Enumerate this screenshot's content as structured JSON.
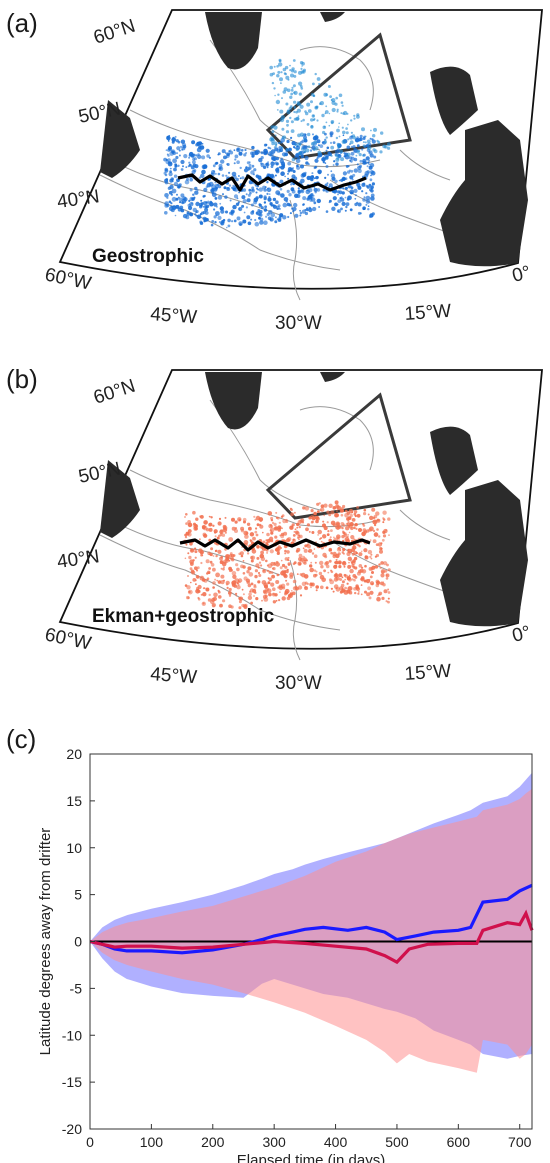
{
  "panels": {
    "a": {
      "label": "(a)",
      "flow_label": "Geostrophic",
      "particle_color": "#1a6fd6"
    },
    "b": {
      "label": "(b)",
      "flow_label": "Ekman+geostrophic",
      "particle_color": "#f2704f"
    },
    "c": {
      "label": "(c)"
    }
  },
  "map_labels": {
    "lat": [
      "60°N",
      "50°N",
      "40°N"
    ],
    "lon": [
      "60°W",
      "45°W",
      "30°W",
      "15°W",
      "0°"
    ]
  },
  "colors": {
    "land": "#2b2b2b",
    "bathymetry": "#9a9a9a",
    "box": "#3a3a3a",
    "drifter_track": "#000000"
  },
  "chart_data": {
    "type": "line",
    "xlabel": "Elapsed time (in days)",
    "ylabel": "Latitude degrees away from drifter",
    "xlim": [
      0,
      720
    ],
    "ylim": [
      -20,
      20
    ],
    "xticks": [
      0,
      100,
      200,
      300,
      400,
      500,
      600,
      700
    ],
    "yticks": [
      20,
      15,
      10,
      5,
      0,
      -5,
      -10,
      -15,
      -20
    ],
    "grid": false,
    "series": [
      {
        "color": "#1a1aff",
        "band_color": "#7070ff",
        "x": [
          0,
          20,
          40,
          60,
          100,
          150,
          200,
          250,
          280,
          300,
          330,
          350,
          380,
          420,
          450,
          480,
          500,
          530,
          560,
          600,
          620,
          640,
          680,
          700,
          720
        ],
        "mean": [
          0,
          -0.3,
          -0.8,
          -1.0,
          -1.0,
          -1.2,
          -0.9,
          -0.3,
          0.2,
          0.6,
          1.0,
          1.3,
          1.5,
          1.2,
          1.5,
          1.0,
          0.2,
          0.6,
          1.0,
          1.2,
          1.5,
          4.2,
          4.5,
          5.4,
          6.0
        ],
        "upper": [
          0,
          1.5,
          2.3,
          2.8,
          3.5,
          4.2,
          5.0,
          6.0,
          6.7,
          7.2,
          7.7,
          8.2,
          8.8,
          9.5,
          10.0,
          10.5,
          11.0,
          11.8,
          12.6,
          13.5,
          14.0,
          14.8,
          15.5,
          16.5,
          18.0
        ],
        "lower": [
          0,
          -1.8,
          -3.2,
          -4.0,
          -4.8,
          -5.5,
          -5.8,
          -6.0,
          -4.5,
          -4.0,
          -4.6,
          -5.0,
          -5.6,
          -6.0,
          -6.6,
          -7.2,
          -7.5,
          -8.2,
          -9.5,
          -10.5,
          -11.0,
          -12.0,
          -12.5,
          -12.2,
          -12.0
        ]
      },
      {
        "color": "#d0104c",
        "band_color": "#ff9090",
        "x": [
          0,
          20,
          40,
          60,
          100,
          150,
          200,
          250,
          300,
          350,
          400,
          450,
          480,
          500,
          520,
          550,
          600,
          630,
          640,
          680,
          700,
          710,
          720
        ],
        "mean": [
          0,
          -0.3,
          -0.6,
          -0.5,
          -0.5,
          -0.7,
          -0.6,
          -0.3,
          0.0,
          -0.2,
          -0.5,
          -0.8,
          -1.5,
          -2.2,
          -0.8,
          -0.3,
          -0.2,
          -0.2,
          1.2,
          2.0,
          1.8,
          3.0,
          1.2
        ],
        "upper": [
          0,
          1.0,
          1.6,
          2.0,
          2.5,
          3.2,
          3.8,
          4.8,
          5.8,
          7.0,
          8.5,
          9.6,
          10.5,
          11.0,
          11.5,
          12.0,
          12.8,
          13.3,
          14.0,
          14.6,
          15.2,
          15.8,
          16.3
        ],
        "lower": [
          0,
          -1.2,
          -2.0,
          -2.5,
          -3.2,
          -4.0,
          -4.6,
          -5.5,
          -6.5,
          -7.6,
          -9.0,
          -10.5,
          -11.8,
          -13.0,
          -12.0,
          -12.8,
          -13.5,
          -14.0,
          -10.5,
          -11.0,
          -12.5,
          -12.0,
          -11.0
        ]
      }
    ]
  }
}
